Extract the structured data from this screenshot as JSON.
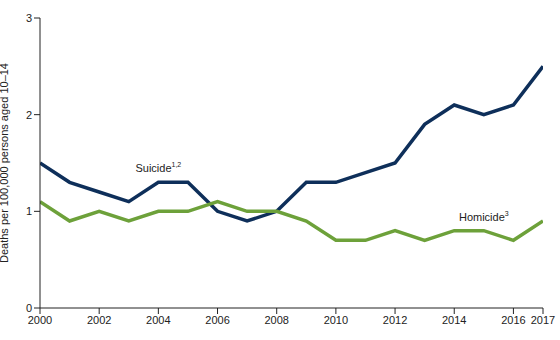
{
  "chart_data": {
    "type": "line",
    "y_label": "Deaths per 100,000 persons aged 10–14",
    "x": [
      2000,
      2001,
      2002,
      2003,
      2004,
      2005,
      2006,
      2007,
      2008,
      2009,
      2010,
      2011,
      2012,
      2013,
      2014,
      2015,
      2016,
      2017
    ],
    "series": [
      {
        "name": "Suicide",
        "footnote": "1,2",
        "color": "#0e2f5a",
        "values": [
          1.5,
          1.3,
          1.2,
          1.1,
          1.3,
          1.3,
          1.0,
          0.9,
          1.0,
          1.3,
          1.3,
          1.4,
          1.5,
          1.9,
          2.1,
          2.0,
          2.1,
          2.5
        ]
      },
      {
        "name": "Homicide",
        "footnote": "3",
        "color": "#6da13a",
        "values": [
          1.1,
          0.9,
          1.0,
          0.9,
          1.0,
          1.0,
          1.1,
          1.0,
          1.0,
          0.9,
          0.7,
          0.7,
          0.8,
          0.7,
          0.8,
          0.8,
          0.7,
          0.9
        ]
      }
    ],
    "xlim": [
      2000,
      2017
    ],
    "xticks": [
      2000,
      2002,
      2004,
      2006,
      2008,
      2010,
      2012,
      2014,
      2016,
      2017
    ],
    "ylim": [
      0,
      3
    ],
    "yticks": [
      0,
      1,
      2,
      3
    ],
    "grid": false
  }
}
